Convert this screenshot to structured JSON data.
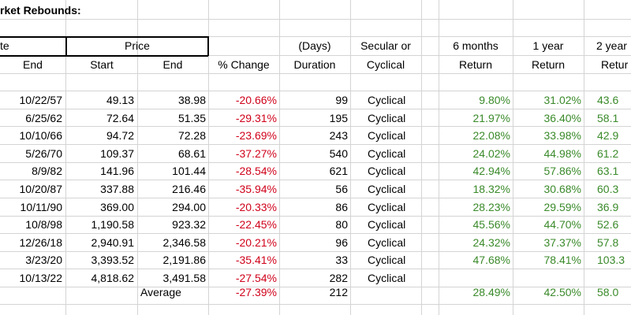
{
  "title": "rket Rebounds:",
  "header1": {
    "date_group": "te",
    "price_group": "Price",
    "days": "(Days)",
    "secular": "Secular or",
    "r6": "6 months",
    "r1": "1 year",
    "r2": "2 year"
  },
  "header2": {
    "end": "End",
    "start": "Start",
    "end2": "End",
    "pct": "% Change",
    "duration": "Duration",
    "cyc": "Cyclical",
    "ret6": "Return",
    "ret1": "Return",
    "ret2": "Retur"
  },
  "rows": [
    {
      "end": "10/22/57",
      "start": "49.13",
      "end_price": "38.98",
      "pct": "-20.66%",
      "dur": "99",
      "type": "Cyclical",
      "r6": "9.80%",
      "r1": "31.02%",
      "r2": "43.6"
    },
    {
      "end": "6/25/62",
      "start": "72.64",
      "end_price": "51.35",
      "pct": "-29.31%",
      "dur": "195",
      "type": "Cyclical",
      "r6": "21.97%",
      "r1": "36.40%",
      "r2": "58.1"
    },
    {
      "end": "10/10/66",
      "start": "94.72",
      "end_price": "72.28",
      "pct": "-23.69%",
      "dur": "243",
      "type": "Cyclical",
      "r6": "22.08%",
      "r1": "33.98%",
      "r2": "42.9"
    },
    {
      "end": "5/26/70",
      "start": "109.37",
      "end_price": "68.61",
      "pct": "-37.27%",
      "dur": "540",
      "type": "Cyclical",
      "r6": "24.02%",
      "r1": "44.98%",
      "r2": "61.2"
    },
    {
      "end": "8/9/82",
      "start": "141.96",
      "end_price": "101.44",
      "pct": "-28.54%",
      "dur": "621",
      "type": "Cyclical",
      "r6": "42.94%",
      "r1": "57.86%",
      "r2": "63.1"
    },
    {
      "end": "10/20/87",
      "start": "337.88",
      "end_price": "216.46",
      "pct": "-35.94%",
      "dur": "56",
      "type": "Cyclical",
      "r6": "18.32%",
      "r1": "30.68%",
      "r2": "60.3"
    },
    {
      "end": "10/11/90",
      "start": "369.00",
      "end_price": "294.00",
      "pct": "-20.33%",
      "dur": "86",
      "type": "Cyclical",
      "r6": "28.23%",
      "r1": "29.59%",
      "r2": "36.9"
    },
    {
      "end": "10/8/98",
      "start": "1,190.58",
      "end_price": "923.32",
      "pct": "-22.45%",
      "dur": "80",
      "type": "Cyclical",
      "r6": "45.56%",
      "r1": "44.70%",
      "r2": "52.6"
    },
    {
      "end": "12/26/18",
      "start": "2,940.91",
      "end_price": "2,346.58",
      "pct": "-20.21%",
      "dur": "96",
      "type": "Cyclical",
      "r6": "24.32%",
      "r1": "37.37%",
      "r2": "57.8"
    },
    {
      "end": "3/23/20",
      "start": "3,393.52",
      "end_price": "2,191.86",
      "pct": "-35.41%",
      "dur": "33",
      "type": "Cyclical",
      "r6": "47.68%",
      "r1": "78.41%",
      "r2": "103.3"
    },
    {
      "end": "10/13/22",
      "start": "4,818.62",
      "end_price": "3,491.58",
      "pct": "-27.54%",
      "dur": "282",
      "type": "Cyclical",
      "r6": "",
      "r1": "",
      "r2": ""
    }
  ],
  "average": {
    "label": "Average",
    "pct": "-27.39%",
    "dur": "212",
    "r6": "28.49%",
    "r1": "42.50%",
    "r2": "58.0"
  },
  "colors": {
    "negative": "#d0021b",
    "positive": "#3a8a2a",
    "grid": "#d4d4d4"
  }
}
